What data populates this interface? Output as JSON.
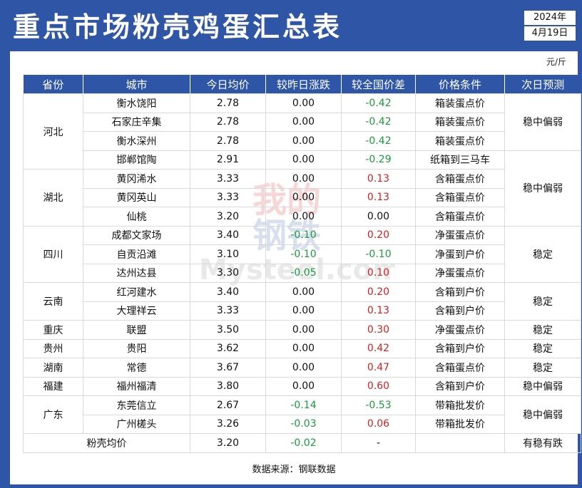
{
  "title": "重点市场粉壳鸡蛋汇总表",
  "date": {
    "year": "2024年",
    "day": "4月19日"
  },
  "unit": "元/斤",
  "columns": [
    "省份",
    "城市",
    "今日均价",
    "较昨日涨跌",
    "较全国价差",
    "价格条件",
    "次日预测"
  ],
  "rows": [
    {
      "city": "衡水饶阳",
      "price": "2.78",
      "change": "0.00",
      "diff": "-0.42",
      "cond": "箱装蛋点价"
    },
    {
      "city": "石家庄辛集",
      "price": "2.78",
      "change": "0.00",
      "diff": "-0.42",
      "cond": "箱装蛋点价"
    },
    {
      "city": "衡水深州",
      "price": "2.78",
      "change": "0.00",
      "diff": "-0.42",
      "cond": "箱装蛋点价"
    },
    {
      "city": "邯郸馆陶",
      "price": "2.91",
      "change": "0.00",
      "diff": "-0.29",
      "cond": "纸箱到三马车"
    },
    {
      "city": "黄冈浠水",
      "price": "3.33",
      "change": "0.00",
      "diff": "0.13",
      "cond": "含箱蛋点价"
    },
    {
      "city": "黄冈英山",
      "price": "3.33",
      "change": "0.00",
      "diff": "0.13",
      "cond": "含箱蛋点价"
    },
    {
      "city": "仙桃",
      "price": "3.20",
      "change": "0.00",
      "diff": "0.00",
      "cond": "含箱蛋点价"
    },
    {
      "city": "成都文家场",
      "price": "3.40",
      "change": "-0.10",
      "diff": "0.20",
      "cond": "净蛋蛋点价"
    },
    {
      "city": "自贡沿滩",
      "price": "3.10",
      "change": "-0.10",
      "diff": "-0.10",
      "cond": "净蛋到户价"
    },
    {
      "city": "达州达县",
      "price": "3.30",
      "change": "-0.05",
      "diff": "0.10",
      "cond": "净蛋蛋点价"
    },
    {
      "city": "红河建水",
      "price": "3.40",
      "change": "0.00",
      "diff": "0.20",
      "cond": "含箱到户价"
    },
    {
      "city": "大理祥云",
      "price": "3.33",
      "change": "0.00",
      "diff": "0.13",
      "cond": "含箱到户价"
    },
    {
      "city": "联盟",
      "price": "3.50",
      "change": "0.00",
      "diff": "0.30",
      "cond": "净蛋蛋点价"
    },
    {
      "city": "贵阳",
      "price": "3.62",
      "change": "0.00",
      "diff": "0.42",
      "cond": "含箱到户价"
    },
    {
      "city": "常德",
      "price": "3.67",
      "change": "0.00",
      "diff": "0.47",
      "cond": "含箱蛋点价"
    },
    {
      "city": "福州福清",
      "price": "3.80",
      "change": "0.00",
      "diff": "0.60",
      "cond": "含箱到户价"
    },
    {
      "city": "东莞信立",
      "price": "2.67",
      "change": "-0.14",
      "diff": "-0.53",
      "cond": "带箱批发价"
    },
    {
      "city": "广州槎头",
      "price": "3.26",
      "change": "-0.03",
      "diff": "0.06",
      "cond": "带箱批发价"
    }
  ],
  "provinces": [
    {
      "name": "河北",
      "rows": 4,
      "forecast_rows": [
        3,
        4
      ]
    },
    {
      "name": "湖北",
      "rows": 3
    },
    {
      "name": "四川",
      "rows": 3
    },
    {
      "name": "云南",
      "rows": 2
    },
    {
      "name": "重庆",
      "rows": 1
    },
    {
      "name": "贵州",
      "rows": 1
    },
    {
      "name": "湖南",
      "rows": 1
    },
    {
      "name": "福建",
      "rows": 1
    },
    {
      "name": "广东",
      "rows": 2
    }
  ],
  "forecasts": [
    {
      "text": "稳中偏弱",
      "rows": 3
    },
    {
      "text": "稳中偏弱",
      "rows": 4
    },
    {
      "text": "稳定",
      "rows": 3
    },
    {
      "text": "稳定",
      "rows": 2
    },
    {
      "text": "稳定",
      "rows": 1
    },
    {
      "text": "稳定",
      "rows": 1
    },
    {
      "text": "稳定",
      "rows": 1
    },
    {
      "text": "稳中偏弱",
      "rows": 1
    },
    {
      "text": "稳中偏弱",
      "rows": 2
    }
  ],
  "summary": {
    "label": "粉壳均价",
    "price": "3.20",
    "change": "-0.02",
    "diff": "-",
    "forecast": "有稳有跌"
  },
  "source": "数据来源：钢联数据",
  "watermark": {
    "line1": "我的",
    "line2": "钢铁",
    "line3": "Mysteel.com"
  },
  "colors": {
    "header": "#2f56a6",
    "positive": "#d42020",
    "negative": "#1a9a3c"
  }
}
